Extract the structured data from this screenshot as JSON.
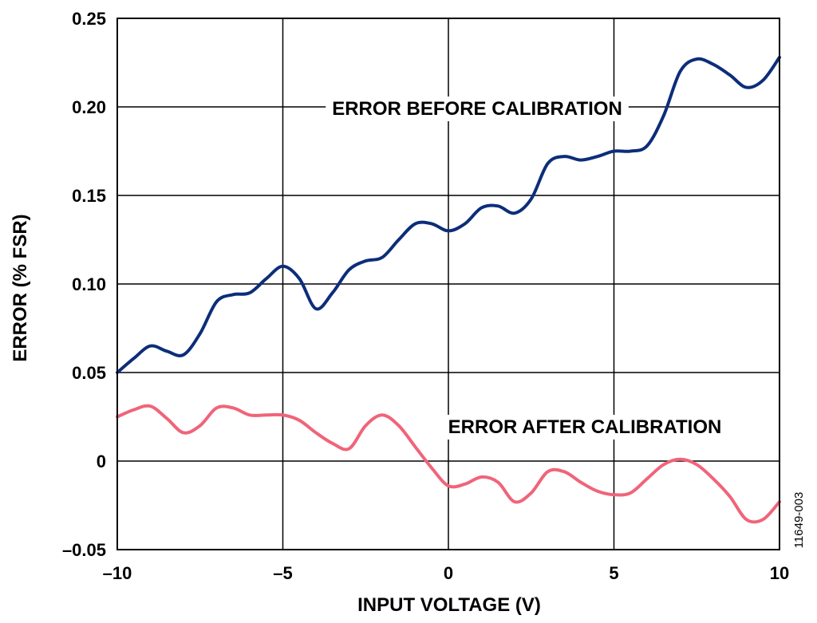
{
  "chart_data": {
    "type": "line",
    "xlabel": "INPUT VOLTAGE (V)",
    "ylabel": "ERROR (% FSR)",
    "xlim": [
      -10,
      10
    ],
    "ylim": [
      -0.05,
      0.25
    ],
    "x_ticks": [
      -10,
      -5,
      0,
      5,
      10
    ],
    "x_tick_labels": [
      "–10",
      "–5",
      "0",
      "5",
      "10"
    ],
    "y_ticks": [
      -0.05,
      0,
      0.05,
      0.1,
      0.15,
      0.2,
      0.25
    ],
    "y_tick_labels": [
      "–0.05",
      "0",
      "0.05",
      "0.10",
      "0.15",
      "0.20",
      "0.25"
    ],
    "grid": true,
    "figure_id": "11649-003",
    "annotations": [
      {
        "text": "ERROR BEFORE CALIBRATION",
        "x": 2.6,
        "y": 0.2
      },
      {
        "text": "ERROR AFTER CALIBRATION",
        "x": 7.6,
        "y": 0.02
      }
    ],
    "series": [
      {
        "color": "#0c2d7a",
        "points": [
          [
            -10,
            0.05
          ],
          [
            -9.5,
            0.058
          ],
          [
            -9,
            0.065
          ],
          [
            -8.5,
            0.062
          ],
          [
            -8,
            0.06
          ],
          [
            -7.5,
            0.072
          ],
          [
            -7,
            0.09
          ],
          [
            -6.5,
            0.094
          ],
          [
            -6,
            0.095
          ],
          [
            -5.5,
            0.103
          ],
          [
            -5,
            0.11
          ],
          [
            -4.5,
            0.103
          ],
          [
            -4,
            0.086
          ],
          [
            -3.5,
            0.095
          ],
          [
            -3,
            0.108
          ],
          [
            -2.5,
            0.113
          ],
          [
            -2,
            0.115
          ],
          [
            -1.5,
            0.125
          ],
          [
            -1,
            0.134
          ],
          [
            -0.5,
            0.134
          ],
          [
            0,
            0.13
          ],
          [
            0.5,
            0.134
          ],
          [
            1,
            0.143
          ],
          [
            1.5,
            0.144
          ],
          [
            2,
            0.14
          ],
          [
            2.5,
            0.148
          ],
          [
            3,
            0.168
          ],
          [
            3.5,
            0.172
          ],
          [
            4,
            0.17
          ],
          [
            4.5,
            0.172
          ],
          [
            5,
            0.175
          ],
          [
            5.5,
            0.175
          ],
          [
            6,
            0.178
          ],
          [
            6.5,
            0.195
          ],
          [
            7,
            0.22
          ],
          [
            7.5,
            0.227
          ],
          [
            8,
            0.224
          ],
          [
            8.5,
            0.218
          ],
          [
            9,
            0.211
          ],
          [
            9.5,
            0.215
          ],
          [
            10,
            0.228
          ]
        ]
      },
      {
        "color": "#f0647a",
        "points": [
          [
            -10,
            0.025
          ],
          [
            -9.5,
            0.029
          ],
          [
            -9,
            0.031
          ],
          [
            -8.5,
            0.024
          ],
          [
            -8,
            0.016
          ],
          [
            -7.5,
            0.02
          ],
          [
            -7,
            0.03
          ],
          [
            -6.5,
            0.03
          ],
          [
            -6,
            0.026
          ],
          [
            -5.5,
            0.026
          ],
          [
            -5,
            0.026
          ],
          [
            -4.5,
            0.023
          ],
          [
            -4,
            0.016
          ],
          [
            -3.5,
            0.01
          ],
          [
            -3,
            0.007
          ],
          [
            -2.5,
            0.02
          ],
          [
            -2,
            0.026
          ],
          [
            -1.5,
            0.02
          ],
          [
            -1,
            0.008
          ],
          [
            -0.5,
            -0.004
          ],
          [
            0,
            -0.014
          ],
          [
            0.5,
            -0.013
          ],
          [
            1,
            -0.009
          ],
          [
            1.5,
            -0.012
          ],
          [
            2,
            -0.023
          ],
          [
            2.5,
            -0.018
          ],
          [
            3,
            -0.006
          ],
          [
            3.5,
            -0.006
          ],
          [
            4,
            -0.012
          ],
          [
            4.5,
            -0.017
          ],
          [
            5,
            -0.019
          ],
          [
            5.5,
            -0.018
          ],
          [
            6,
            -0.01
          ],
          [
            6.5,
            -0.002
          ],
          [
            7,
            0.001
          ],
          [
            7.5,
            -0.002
          ],
          [
            8,
            -0.01
          ],
          [
            8.5,
            -0.02
          ],
          [
            9,
            -0.033
          ],
          [
            9.5,
            -0.033
          ],
          [
            10,
            -0.023
          ]
        ]
      }
    ]
  }
}
